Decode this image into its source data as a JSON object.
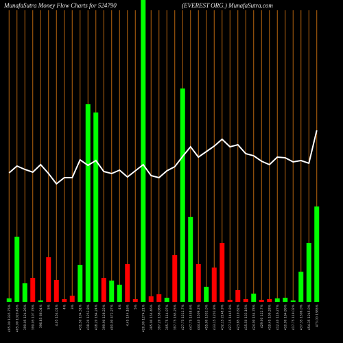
{
  "chart_data": {
    "type": "bar",
    "title": "MunafaSutra  Money Flow  Charts for 524790",
    "subtitle": "(EVEREST ORG.) MunafaSutra.com",
    "categories": [
      "405.00 1335.75%",
      "405.00 1020.45%",
      "399.05 124.26%",
      "399.05 107.78%",
      "396.85 66.04%",
      "5%",
      "4.05 154.01%",
      "4%",
      "3%",
      "431.50 104.31%",
      "418.20 1253.8%",
      "418.20 164.24%",
      "399.90 128.22%",
      "400.00 472.27%",
      "4%",
      "4.45 144.16%",
      "5%",
      "420.00 1274.21%",
      "395.00 154.46%",
      "397.20 138.08%",
      "395.75 114.97%",
      "397.75 165.25%",
      "427.75 1211.7%",
      "447.75 1458.6%",
      "444.40 1509.2%",
      "455.00 1332.0%",
      "433.15 1201.8%",
      "432.15 2148.9%",
      "427.15 1445.8%",
      "423.85 119.82%",
      "415.50 133.16%",
      "424.00 154.78%",
      "429.00 122.7%",
      "419.45 109.28%",
      "412.40 116.27%",
      "410.90 164.86%",
      "417.75 119.02%",
      "437.35 1306.0%",
      "454.35 1245.0%",
      "473.00 1385%"
    ],
    "series": [
      {
        "name": "Money Flow",
        "colors": [
          "#00ff00",
          "#00ff00",
          "#00ff00",
          "#ff0000",
          "#00ff00",
          "#ff0000",
          "#ff0000",
          "#ff0000",
          "#ff0000",
          "#00ff00",
          "#00ff00",
          "#00ff00",
          "#ff0000",
          "#00ff00",
          "#00ff00",
          "#ff0000",
          "#ff0000",
          "#00ff00",
          "#ff0000",
          "#ff0000",
          "#00ff00",
          "#ff0000",
          "#00ff00",
          "#00ff00",
          "#ff0000",
          "#00ff00",
          "#ff0000",
          "#ff0000",
          "#ff0000",
          "#ff0000",
          "#ff0000",
          "#00ff00",
          "#ff0000",
          "#ff0000",
          "#00ff00",
          "#00ff00",
          "#00ff00",
          "#00ff00",
          "#00ff00",
          "#00ff00"
        ],
        "values": [
          5,
          95,
          27,
          35,
          2,
          65,
          32,
          4,
          9,
          54,
          288,
          276,
          35,
          31,
          25,
          55,
          4,
          440,
          8,
          11,
          6,
          68,
          311,
          124,
          55,
          22,
          50,
          86,
          3,
          17,
          4,
          12,
          3,
          4,
          5,
          6,
          2,
          44,
          86,
          139
        ]
      },
      {
        "name": "Price",
        "type": "line",
        "color": "#ffffff",
        "values": [
          188,
          198,
          193,
          189,
          200,
          187,
          172,
          181,
          181,
          207,
          199,
          206,
          190,
          187,
          192,
          182,
          191,
          200,
          184,
          181,
          191,
          197,
          212,
          226,
          211,
          219,
          227,
          237,
          226,
          229,
          216,
          213,
          205,
          200,
          211,
          210,
          204,
          206,
          202,
          250
        ]
      }
    ],
    "ylim": [
      0,
      440
    ],
    "grid_color": "#b8650f"
  }
}
